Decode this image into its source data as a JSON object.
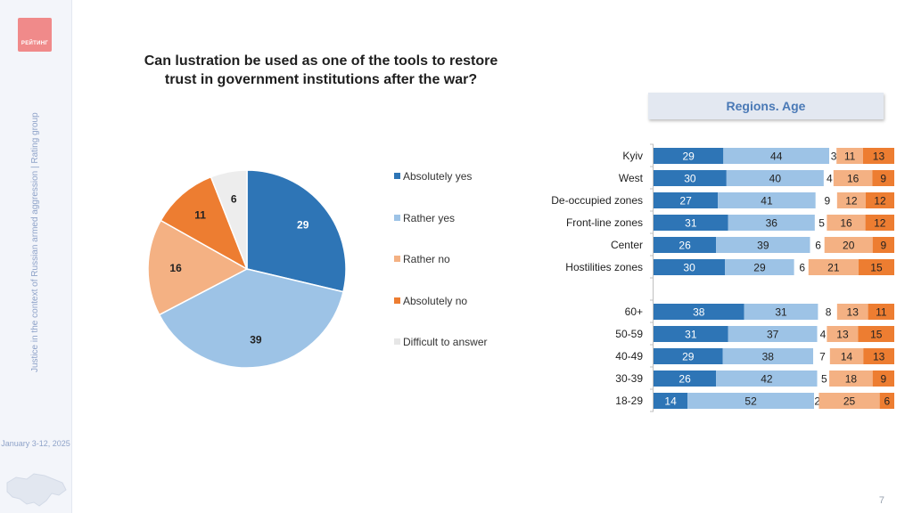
{
  "brand": {
    "logo_text": "РЕЙТИНГ"
  },
  "sidebar": {
    "vertical_text": "Justice in the context of Russian armed aggression | Rating group",
    "date": "January 3-12, 2025"
  },
  "page_number": "7",
  "colors": {
    "absolutely_yes": "#2e75b6",
    "rather_yes": "#9dc3e6",
    "rather_no": "#f4b183",
    "absolutely_no": "#ed7d31",
    "difficult": "#ededed"
  },
  "chart_data": [
    {
      "type": "pie",
      "title": "Can lustration be used as one of the tools to restore trust in government institutions after the war?",
      "categories": [
        "Absolutely yes",
        "Rather yes",
        "Rather no",
        "Absolutely no",
        "Difficult to answer"
      ],
      "values": [
        29,
        39,
        16,
        11,
        6
      ],
      "legend": "right"
    },
    {
      "type": "bar",
      "orientation": "horizontal",
      "stacked": "100%",
      "title": "Regions. Age",
      "categories": [
        "Kyiv",
        "West",
        "De-occupied zones",
        "Front-line zones",
        "Center",
        "Hostilities zones",
        "60+",
        "50-59",
        "40-49",
        "30-39",
        "18-29"
      ],
      "series": [
        {
          "name": "Absolutely yes",
          "values": [
            29,
            30,
            27,
            31,
            26,
            30,
            38,
            31,
            29,
            26,
            14
          ]
        },
        {
          "name": "Rather yes",
          "values": [
            44,
            40,
            41,
            36,
            39,
            29,
            31,
            37,
            38,
            42,
            52
          ]
        },
        {
          "name": "Rather no",
          "values": [
            11,
            16,
            12,
            16,
            20,
            21,
            13,
            13,
            14,
            18,
            25
          ]
        },
        {
          "name": "Absolutely no",
          "values": [
            13,
            9,
            12,
            12,
            9,
            15,
            11,
            15,
            13,
            9,
            6
          ]
        },
        {
          "name": "Difficult to answer",
          "values": [
            3,
            4,
            9,
            5,
            6,
            6,
            8,
            4,
            7,
            5,
            2
          ]
        }
      ],
      "xlim": [
        0,
        100
      ]
    }
  ]
}
